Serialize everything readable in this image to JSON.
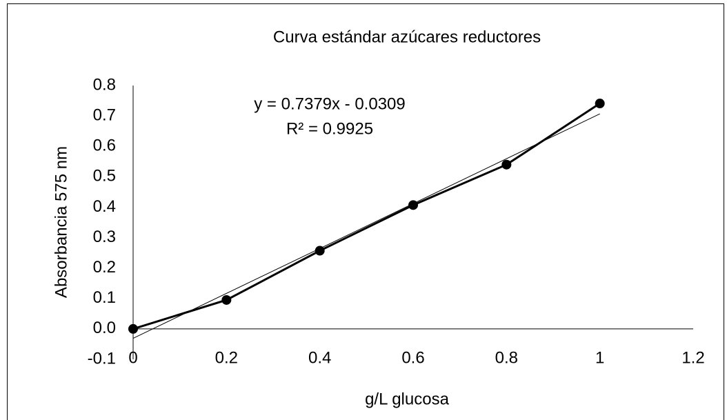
{
  "chart_data": {
    "type": "scatter",
    "title": "Curva estándar azúcares reductores",
    "xlabel": "g/L glucosa",
    "ylabel": "Absorbancia 575 nm",
    "annotations": [
      "y = 0.7379x - 0.0309",
      "R² = 0.9925"
    ],
    "x": [
      0,
      0.2,
      0.4,
      0.6,
      0.8,
      1
    ],
    "series": [
      {
        "color": "#000000",
        "values": [
          0.0,
          0.095,
          0.257,
          0.407,
          0.54,
          0.741
        ]
      }
    ],
    "trendline": {
      "slope": 0.7379,
      "intercept": -0.0309
    },
    "xlim": [
      0,
      1.2
    ],
    "xticks": [
      0,
      0.2,
      0.4,
      0.6,
      0.8,
      1,
      1.2
    ],
    "ylim": [
      -0.1,
      0.8
    ],
    "yticks": [
      -0.1,
      {
        "value": 0,
        "label": "0.0"
      },
      0.1,
      0.2,
      0.3,
      0.4,
      0.5,
      0.6,
      0.7,
      0.8
    ],
    "grid": false
  }
}
